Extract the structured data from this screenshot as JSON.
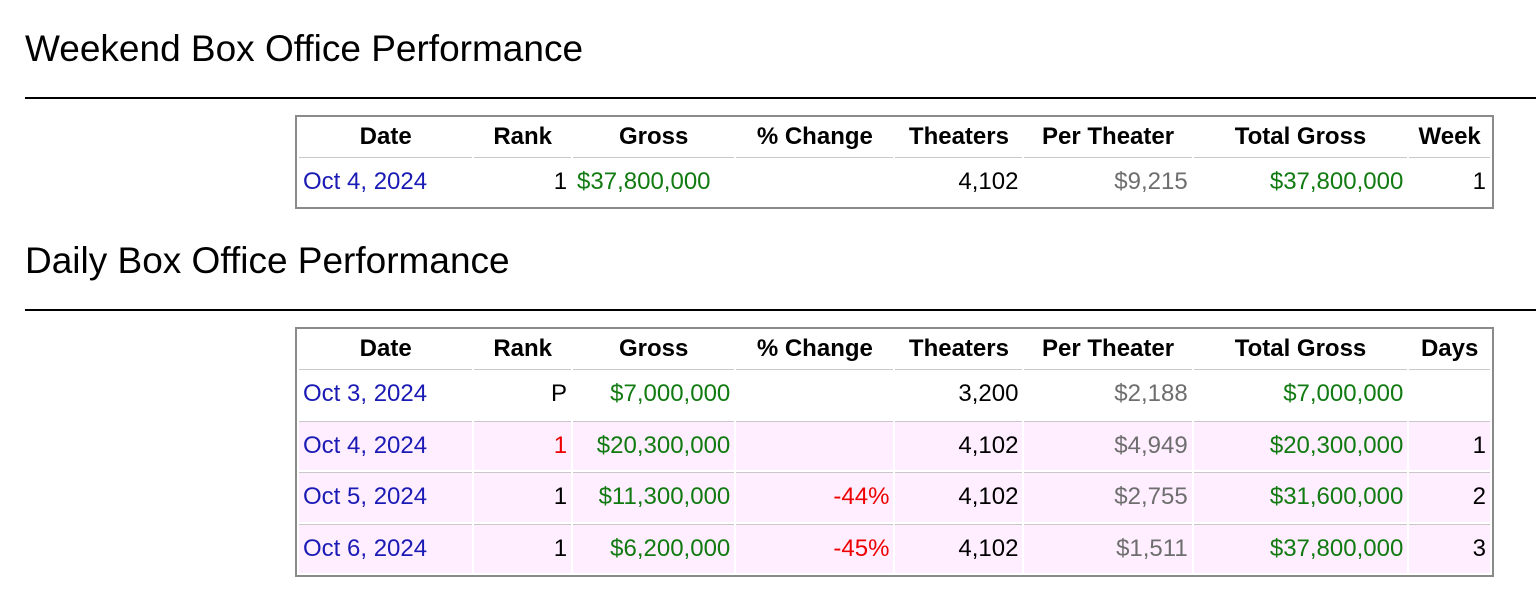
{
  "weekend": {
    "title": "Weekend Box Office Performance",
    "columns": [
      "Date",
      "Rank",
      "Gross",
      "% Change",
      "Theaters",
      "Per Theater",
      "Total Gross",
      "Week"
    ],
    "rows": [
      {
        "date": "Oct 4, 2024",
        "rank": "1",
        "gross": "$37,800,000",
        "change": "",
        "theaters": "4,102",
        "per_theater": "$9,215",
        "total_gross": "$37,800,000",
        "week": "1"
      }
    ]
  },
  "daily": {
    "title": "Daily Box Office Performance",
    "columns": [
      "Date",
      "Rank",
      "Gross",
      "% Change",
      "Theaters",
      "Per Theater",
      "Total Gross",
      "Days"
    ],
    "rows": [
      {
        "date": "Oct 3, 2024",
        "rank": "P",
        "gross": "$7,000,000",
        "change": "",
        "theaters": "3,200",
        "per_theater": "$2,188",
        "total_gross": "$7,000,000",
        "days": ""
      },
      {
        "date": "Oct 4, 2024",
        "rank": "1",
        "gross": "$20,300,000",
        "change": "",
        "theaters": "4,102",
        "per_theater": "$4,949",
        "total_gross": "$20,300,000",
        "days": "1"
      },
      {
        "date": "Oct 5, 2024",
        "rank": "1",
        "gross": "$11,300,000",
        "change": "-44%",
        "theaters": "4,102",
        "per_theater": "$2,755",
        "total_gross": "$31,600,000",
        "days": "2"
      },
      {
        "date": "Oct 6, 2024",
        "rank": "1",
        "gross": "$6,200,000",
        "change": "-45%",
        "theaters": "4,102",
        "per_theater": "$1,511",
        "total_gross": "$37,800,000",
        "days": "3"
      }
    ]
  },
  "colors": {
    "link": "#1a1ab4",
    "gross": "#117a11",
    "per_theater": "#6e6e6e",
    "negative_change": "#ee0000",
    "highlight_row": "#ffeeff",
    "table_border": "#8a8a8a"
  }
}
